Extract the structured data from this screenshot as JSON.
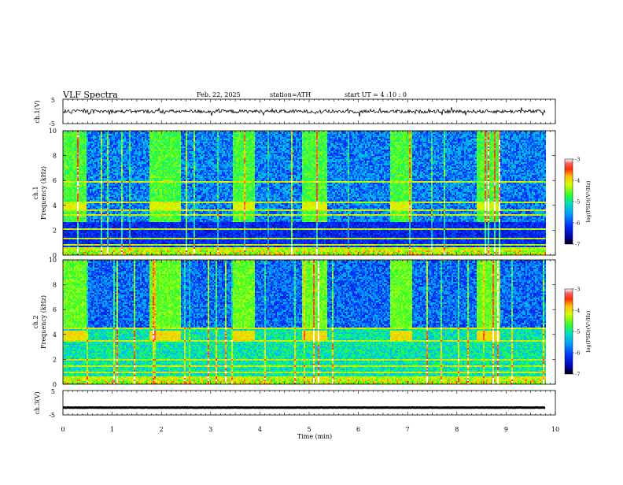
{
  "header": {
    "title": "VLF  Spectra",
    "date": "Feb. 22, 2025",
    "station": "station=ATH",
    "start": "start  UT  =   4  :10 : 0"
  },
  "chart_data": [
    {
      "type": "line",
      "ylabel": "ch.1(V)",
      "ylim": [
        -5,
        5
      ],
      "ytick_labels": [
        "5",
        "-5"
      ],
      "x_range_min": [
        0,
        9.8
      ],
      "level_approx": 0
    },
    {
      "type": "heatmap",
      "ylabel_top": "ch.1",
      "ylabel": "Frequency  (kHz)",
      "ylim": [
        0,
        10
      ],
      "ytick_labels": [
        "10",
        "8",
        "6",
        "4",
        "2",
        "0"
      ],
      "colorbar": {
        "label": "log(PSD)(V²/Hz)",
        "range": [
          -7,
          -3
        ],
        "tick_labels": [
          "-3",
          "-4",
          "-5",
          "-6",
          "-7"
        ]
      },
      "gap_intervals_min": [
        [
          0.0,
          0.45
        ],
        [
          1.75,
          2.38
        ],
        [
          3.42,
          3.88
        ],
        [
          4.85,
          5.35
        ],
        [
          6.62,
          7.08
        ],
        [
          8.4,
          8.85
        ]
      ],
      "carrier_lines_khz": [
        0.5,
        0.8,
        1.3,
        2.1,
        3.2,
        3.6,
        4.2,
        5.9
      ]
    },
    {
      "type": "heatmap",
      "ylabel_top": "ch.2",
      "ylabel": "Frequency  (kHz)",
      "ylim": [
        0,
        10
      ],
      "ytick_labels": [
        "10",
        "8",
        "6",
        "4",
        "2",
        "0"
      ],
      "colorbar": {
        "label": "log(PSD)(V²/Hz)",
        "range": [
          -7,
          -3
        ],
        "tick_labels": [
          "-3",
          "-4",
          "-5",
          "-6",
          "-7"
        ]
      },
      "gap_intervals_min": [
        [
          0.0,
          0.45
        ],
        [
          1.75,
          2.38
        ],
        [
          3.42,
          3.88
        ],
        [
          4.85,
          5.35
        ],
        [
          6.62,
          7.08
        ],
        [
          8.4,
          8.85
        ]
      ],
      "carrier_lines_khz": [
        0.5,
        0.9,
        1.5,
        2.0,
        3.5,
        4.5
      ]
    },
    {
      "type": "line",
      "ylabel": "ch.3(V)",
      "ylim": [
        -5,
        5
      ],
      "ytick_labels": [
        "5",
        "-5"
      ],
      "x_range_min": [
        0,
        9.8
      ],
      "level_approx": -2
    }
  ],
  "xaxis": {
    "label": "Time  (min)",
    "range": [
      0,
      10
    ],
    "tick_labels": [
      "0",
      "1",
      "2",
      "3",
      "4",
      "5",
      "6",
      "7",
      "8",
      "9",
      "10"
    ]
  }
}
